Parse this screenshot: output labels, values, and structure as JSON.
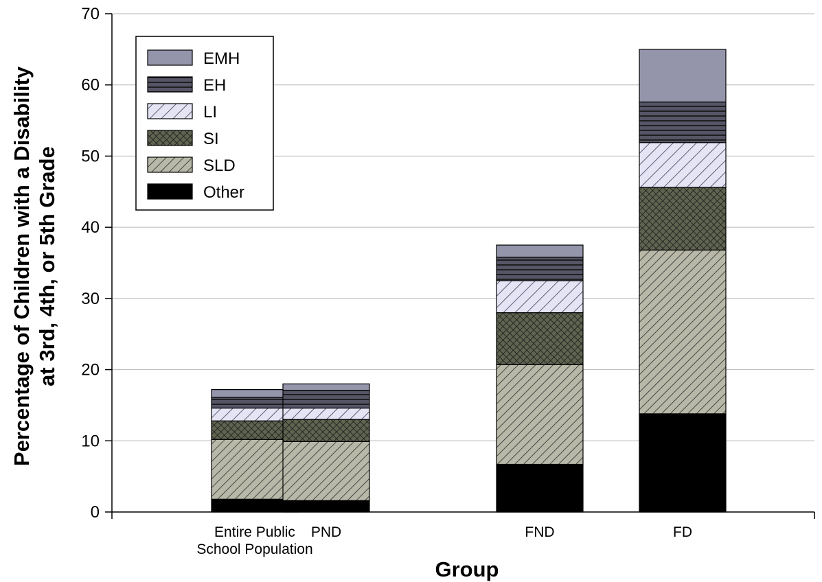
{
  "chart_data": {
    "type": "bar",
    "stacked": true,
    "categories": [
      [
        "Entire Public",
        "School Population"
      ],
      [
        "PND"
      ],
      [
        "FND"
      ],
      [
        "FD"
      ]
    ],
    "series": [
      {
        "name": "Other",
        "values": [
          1.8,
          1.6,
          6.7,
          13.8
        ],
        "color": "#000000",
        "pattern": "solid"
      },
      {
        "name": "SLD",
        "values": [
          8.4,
          8.3,
          14.0,
          23.0
        ],
        "color": "#b8b8a8",
        "pattern": "diag-fine"
      },
      {
        "name": "SI",
        "values": [
          2.6,
          3.1,
          7.3,
          8.8
        ],
        "color": "#5f6450",
        "pattern": "crosshatch"
      },
      {
        "name": "LI",
        "values": [
          1.8,
          1.6,
          4.5,
          6.3
        ],
        "color": "#e4e4f4",
        "pattern": "diag-wide"
      },
      {
        "name": "EH",
        "values": [
          1.5,
          2.5,
          3.3,
          5.7
        ],
        "color": "#505060",
        "pattern": "horizontal"
      },
      {
        "name": "EMH",
        "values": [
          1.1,
          0.9,
          1.7,
          7.4
        ],
        "color": "#9494aa",
        "pattern": "solid"
      }
    ],
    "legend_order": [
      "EMH",
      "EH",
      "LI",
      "SI",
      "SLD",
      "Other"
    ],
    "legend_position": "top-left",
    "xlabel": "Group",
    "ylabel_lines": [
      "Percentage of Children with a Disability",
      "at 3rd, 4th, or 5th Grade"
    ],
    "ylim": [
      0,
      70
    ],
    "yticks": [
      0,
      10,
      20,
      30,
      40,
      50,
      60,
      70
    ],
    "grid": true
  }
}
